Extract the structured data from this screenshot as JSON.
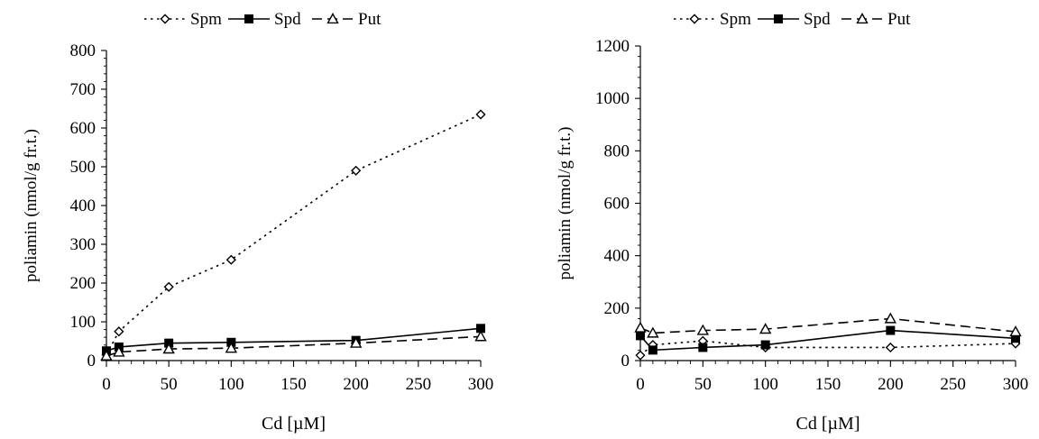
{
  "chart_data": [
    {
      "type": "line",
      "title": "",
      "xlabel": "Cd [µM]",
      "ylabel": "poliamin (nmol/g fr.t.)",
      "x": [
        0,
        10,
        50,
        100,
        200,
        300
      ],
      "xlim": [
        0,
        300
      ],
      "ylim": [
        0,
        800
      ],
      "xticks": [
        0,
        50,
        100,
        150,
        200,
        250,
        300
      ],
      "yticks": [
        0,
        100,
        200,
        300,
        400,
        500,
        600,
        700,
        800
      ],
      "grid": false,
      "legend_position": "top",
      "series": [
        {
          "name": "Spm",
          "values": [
            15,
            75,
            190,
            260,
            490,
            635
          ]
        },
        {
          "name": "Spd",
          "values": [
            25,
            35,
            45,
            47,
            52,
            83
          ]
        },
        {
          "name": "Put",
          "values": [
            12,
            22,
            30,
            32,
            45,
            62
          ]
        }
      ]
    },
    {
      "type": "line",
      "title": "",
      "xlabel": "Cd [µM]",
      "ylabel": "poliamin (nmol/g fr.t.)",
      "x": [
        0,
        10,
        50,
        100,
        200,
        300
      ],
      "xlim": [
        0,
        300
      ],
      "ylim": [
        0,
        1200
      ],
      "xticks": [
        0,
        50,
        100,
        150,
        200,
        250,
        300
      ],
      "yticks": [
        0,
        200,
        400,
        600,
        800,
        1000,
        1200
      ],
      "grid": false,
      "legend_position": "top",
      "series": [
        {
          "name": "Spm",
          "values": [
            20,
            60,
            75,
            50,
            50,
            65
          ]
        },
        {
          "name": "Spd",
          "values": [
            95,
            40,
            50,
            60,
            115,
            85
          ]
        },
        {
          "name": "Put",
          "values": [
            125,
            105,
            115,
            120,
            160,
            110
          ]
        }
      ]
    }
  ],
  "style": {
    "line_color": "#000000",
    "series_markers": [
      "open-diamond",
      "filled-square",
      "open-triangle"
    ],
    "series_dash": [
      "dotted",
      "solid",
      "dashed"
    ]
  }
}
